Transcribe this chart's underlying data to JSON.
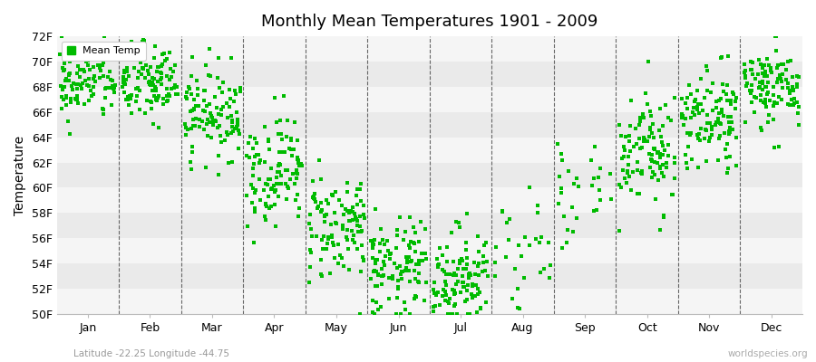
{
  "title": "Monthly Mean Temperatures 1901 - 2009",
  "ylabel": "Temperature",
  "subtitle": "Latitude -22.25 Longitude -44.75",
  "watermark": "worldspecies.org",
  "legend_label": "Mean Temp",
  "dot_color": "#00bb00",
  "bg_color": "#ffffff",
  "band_color_light": "#f5f5f5",
  "band_color_dark": "#eaeaea",
  "ylim": [
    50,
    72
  ],
  "yticks": [
    50,
    52,
    54,
    56,
    58,
    60,
    62,
    64,
    66,
    68,
    70,
    72
  ],
  "ytick_labels": [
    "50F",
    "52F",
    "54F",
    "56F",
    "58F",
    "60F",
    "62F",
    "64F",
    "66F",
    "68F",
    "70F",
    "72F"
  ],
  "months": [
    "Jan",
    "Feb",
    "Mar",
    "Apr",
    "May",
    "Jun",
    "Jul",
    "Aug",
    "Sep",
    "Oct",
    "Nov",
    "Dec"
  ],
  "month_means_f": [
    68.5,
    68.2,
    66.0,
    61.5,
    57.0,
    53.5,
    53.0,
    55.5,
    59.5,
    63.0,
    65.5,
    68.0
  ],
  "month_stds_f": [
    1.6,
    1.6,
    1.8,
    2.2,
    2.2,
    2.0,
    2.0,
    2.2,
    2.2,
    2.2,
    1.8,
    1.6
  ],
  "n_points": [
    109,
    109,
    109,
    109,
    109,
    109,
    109,
    30,
    30,
    109,
    109,
    109
  ],
  "seed": 42,
  "marker_size": 3.5,
  "dpi": 100,
  "figsize": [
    9.0,
    4.0
  ]
}
